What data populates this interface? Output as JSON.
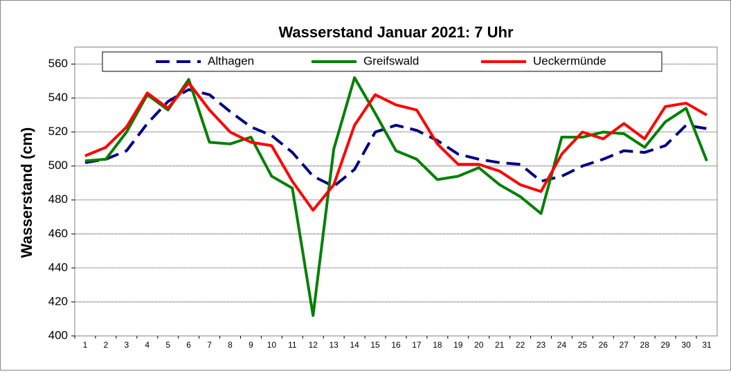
{
  "chart_data": {
    "type": "line",
    "title": "Wasserstand Januar 2021: 7 Uhr",
    "y_label": "Wasserstand (cm)",
    "categories": [
      "1",
      "2",
      "3",
      "4",
      "5",
      "6",
      "7",
      "8",
      "9",
      "10",
      "11",
      "12",
      "13",
      "14",
      "15",
      "16",
      "17",
      "18",
      "19",
      "20",
      "21",
      "22",
      "23",
      "24",
      "25",
      "26",
      "27",
      "28",
      "29",
      "30",
      "31"
    ],
    "series": [
      {
        "name": "Althagen",
        "color": "#000080",
        "dash": true,
        "values": [
          502,
          504,
          509,
          525,
          538,
          545,
          542,
          532,
          523,
          518,
          508,
          494,
          488,
          498,
          520,
          524,
          521,
          515,
          507,
          504,
          502,
          501,
          491,
          494,
          500,
          504,
          509,
          508,
          512,
          524,
          522
        ]
      },
      {
        "name": "Greifswald",
        "color": "#008000",
        "dash": false,
        "values": [
          503,
          504,
          520,
          542,
          533,
          551,
          514,
          513,
          517,
          494,
          487,
          412,
          510,
          552,
          531,
          509,
          504,
          492,
          494,
          499,
          489,
          482,
          472,
          517,
          517,
          520,
          519,
          511,
          526,
          534,
          503
        ]
      },
      {
        "name": "Ueckermünde",
        "color": "#ff0000",
        "dash": false,
        "values": [
          506,
          511,
          523,
          543,
          534,
          549,
          533,
          520,
          514,
          512,
          491,
          474,
          489,
          524,
          542,
          536,
          533,
          513,
          501,
          501,
          497,
          489,
          485,
          507,
          520,
          516,
          525,
          516,
          535,
          537,
          530
        ]
      }
    ],
    "ylim": [
      400,
      570
    ],
    "yticks": [
      400,
      420,
      440,
      460,
      480,
      500,
      520,
      540,
      560
    ],
    "grid": true,
    "legend": "top"
  }
}
